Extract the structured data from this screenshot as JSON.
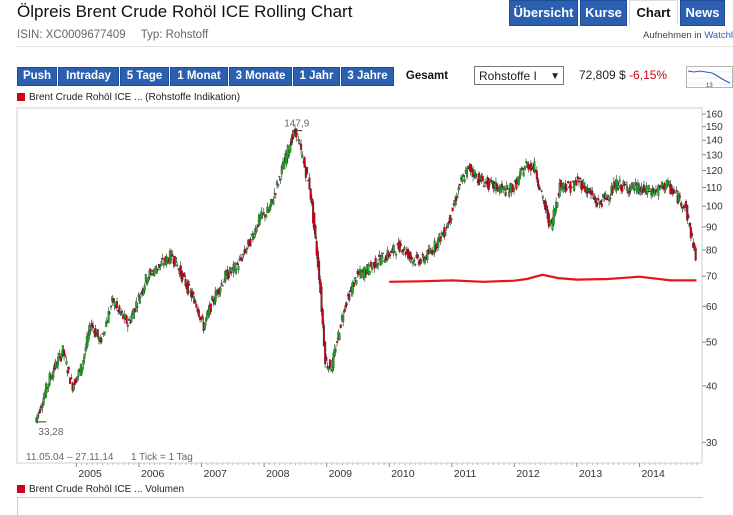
{
  "header": {
    "title": "Ölpreis Brent Crude Rohöl ICE Rolling Chart",
    "isin": "ISIN: XC0009677409",
    "typ": "Typ: Rohstoff",
    "watchlist_prefix": "Aufnehmen in",
    "watchlist_link": "Watchl"
  },
  "nav": {
    "tabs": [
      {
        "label": "Übersicht",
        "active": false
      },
      {
        "label": "Kurse",
        "active": false
      },
      {
        "label": "Chart",
        "active": true
      },
      {
        "label": "News",
        "active": false
      }
    ]
  },
  "range": {
    "buttons": [
      {
        "label": "Push",
        "active": false
      },
      {
        "label": "Intraday",
        "active": false
      },
      {
        "label": "5 Tage",
        "active": false
      },
      {
        "label": "1 Monat",
        "active": false
      },
      {
        "label": "3 Monate",
        "active": false
      },
      {
        "label": "1 Jahr",
        "active": false
      },
      {
        "label": "3 Jahre",
        "active": false
      },
      {
        "label": "Gesamt",
        "active": true
      }
    ]
  },
  "selector": {
    "value": "Rohstoffe I"
  },
  "quote": {
    "price": "72,809 $",
    "change": "-6,15%"
  },
  "sparkline": {
    "label": "13"
  },
  "colors": {
    "accent": "#2b5fb0",
    "up": "#22aa22",
    "down": "#d0021b",
    "indikation": "#e8141c"
  },
  "chart_data": {
    "type": "line",
    "style": "candlestick",
    "title": "Brent Crude Rohöl ICE ... (Rohstoffe Indikation)",
    "y_scale": "log",
    "ylim": [
      27,
      165
    ],
    "y_ticks": [
      30,
      40,
      50,
      60,
      70,
      80,
      90,
      100,
      110,
      120,
      130,
      140,
      150,
      160
    ],
    "x_ticks": [
      "2005",
      "2006",
      "2007",
      "2008",
      "2009",
      "2010",
      "2011",
      "2012",
      "2013",
      "2014"
    ],
    "date_range_label": "11.05.04 – 27.11.14",
    "tick_info": "1 Tick = 1 Tag",
    "annotations": {
      "max": "147,9",
      "min": "33,28"
    },
    "series": [
      {
        "name": "Brent Crude Rohöl ICE",
        "x": [
          2004.36,
          2004.5,
          2004.6,
          2004.8,
          2004.95,
          2005.1,
          2005.25,
          2005.4,
          2005.6,
          2005.7,
          2005.85,
          2006.0,
          2006.15,
          2006.35,
          2006.55,
          2006.75,
          2006.95,
          2007.05,
          2007.2,
          2007.4,
          2007.6,
          2007.8,
          2007.95,
          2008.1,
          2008.3,
          2008.45,
          2008.53,
          2008.6,
          2008.75,
          2008.9,
          2009.0,
          2009.1,
          2009.3,
          2009.5,
          2009.65,
          2009.85,
          2010.0,
          2010.2,
          2010.4,
          2010.55,
          2010.7,
          2010.9,
          2011.0,
          2011.15,
          2011.3,
          2011.45,
          2011.6,
          2011.75,
          2011.9,
          2012.05,
          2012.2,
          2012.35,
          2012.45,
          2012.6,
          2012.75,
          2012.9,
          2013.05,
          2013.2,
          2013.35,
          2013.5,
          2013.65,
          2013.8,
          2013.95,
          2014.1,
          2014.3,
          2014.45,
          2014.6,
          2014.75,
          2014.85,
          2014.91
        ],
        "values": [
          33.3,
          38,
          42,
          48,
          40,
          44,
          55,
          50,
          62,
          58,
          55,
          62,
          70,
          74,
          78,
          68,
          60,
          54,
          62,
          70,
          74,
          84,
          94,
          98,
          120,
          140,
          147,
          133,
          110,
          70,
          45,
          44,
          60,
          70,
          72,
          76,
          78,
          82,
          76,
          76,
          80,
          88,
          95,
          112,
          122,
          115,
          112,
          110,
          108,
          112,
          124,
          122,
          106,
          90,
          112,
          110,
          114,
          108,
          101,
          105,
          112,
          110,
          110,
          108,
          108,
          112,
          106,
          100,
          86,
          78
        ]
      },
      {
        "name": "Rohstoffe Indikation",
        "x": [
          2010.0,
          2010.5,
          2011.0,
          2011.5,
          2012.0,
          2012.2,
          2012.45,
          2012.7,
          2013.0,
          2013.5,
          2014.0,
          2014.5,
          2014.91
        ],
        "values": [
          68,
          68.2,
          68.5,
          68,
          68.4,
          69,
          70.5,
          69.3,
          68.8,
          69,
          69.8,
          68.5,
          68.5
        ]
      }
    ],
    "volume_panel": {
      "title": "Brent Crude Rohöl ICE ... Volumen"
    }
  }
}
